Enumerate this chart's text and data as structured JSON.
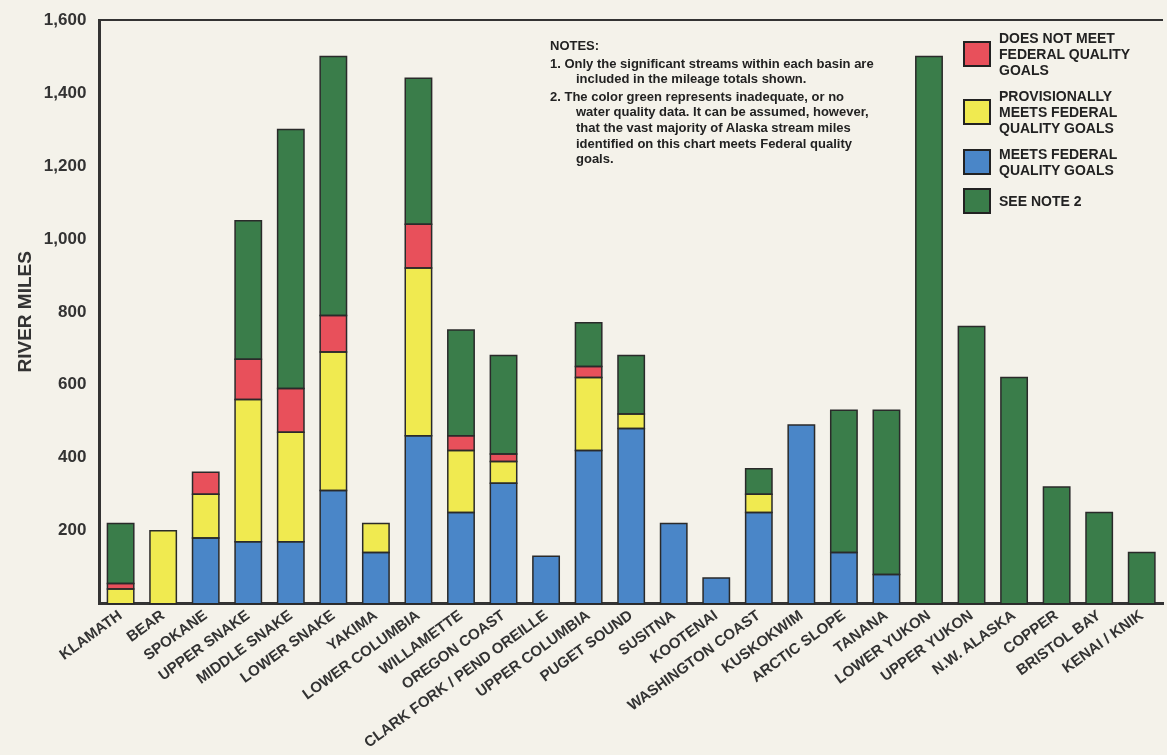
{
  "chart_data": {
    "type": "bar",
    "stacked": true,
    "ylabel": "RIVER MILES",
    "categories": [
      "KLAMATH",
      "BEAR",
      "SPOKANE",
      "UPPER SNAKE",
      "MIDDLE SNAKE",
      "LOWER SNAKE",
      "YAKIMA",
      "LOWER COLUMBIA",
      "WILLAMETTE",
      "OREGON COAST",
      "CLARK FORK / PEND OREILLE",
      "UPPER COLUMBIA",
      "PUGET SOUND",
      "SUSITNA",
      "KOOTENAI",
      "WASHINGTON COAST",
      "KUSKOKWIM",
      "ARCTIC SLOPE",
      "TANANA",
      "LOWER YUKON",
      "UPPER YUKON",
      "N.W. ALASKA",
      "COPPER",
      "BRISTOL BAY",
      "KENAI / KNIK"
    ],
    "series": [
      {
        "name": "MEETS FEDERAL QUALITY GOALS",
        "color": "#4a86c8",
        "values": [
          0,
          0,
          180,
          170,
          170,
          310,
          140,
          460,
          250,
          330,
          130,
          420,
          480,
          220,
          70,
          250,
          490,
          140,
          80,
          0,
          0,
          0,
          0,
          0,
          0
        ]
      },
      {
        "name": "PROVISIONALLY MEETS FEDERAL QUALITY GOALS",
        "color": "#f0ea50",
        "values": [
          40,
          200,
          120,
          390,
          300,
          380,
          80,
          460,
          170,
          60,
          0,
          200,
          40,
          0,
          0,
          50,
          0,
          0,
          0,
          0,
          0,
          0,
          0,
          0,
          0
        ]
      },
      {
        "name": "DOES NOT MEET FEDERAL QUALITY GOALS",
        "color": "#e8505b",
        "values": [
          15,
          0,
          60,
          110,
          120,
          100,
          0,
          120,
          40,
          20,
          0,
          30,
          0,
          0,
          0,
          0,
          0,
          0,
          0,
          0,
          0,
          0,
          0,
          0,
          0
        ]
      },
      {
        "name": "SEE NOTE 2",
        "color": "#3a7d4a",
        "values": [
          165,
          0,
          0,
          380,
          710,
          710,
          0,
          400,
          290,
          270,
          0,
          120,
          160,
          0,
          0,
          70,
          0,
          390,
          450,
          1500,
          760,
          620,
          320,
          250,
          140
        ]
      }
    ],
    "ylim": [
      0,
      1600
    ],
    "yticks": [
      {
        "value": 200,
        "label": "200"
      },
      {
        "value": 400,
        "label": "400"
      },
      {
        "value": 600,
        "label": "600"
      },
      {
        "value": 800,
        "label": "800"
      },
      {
        "value": 1000,
        "label": "1,000"
      },
      {
        "value": 1200,
        "label": "1,200"
      },
      {
        "value": 1400,
        "label": "1,400"
      },
      {
        "value": 1600,
        "label": "1,600"
      }
    ],
    "grid": false,
    "legend": "top right",
    "annotations": [
      "NOTES:",
      "1. Only the significant streams within each basin are included in the mileage totals shown.",
      "2. The color green represents inadequate, or no water quality data. It can be assumed, however, that the vast majority of Alaska stream miles identified on this chart meets Federal quality goals."
    ]
  }
}
